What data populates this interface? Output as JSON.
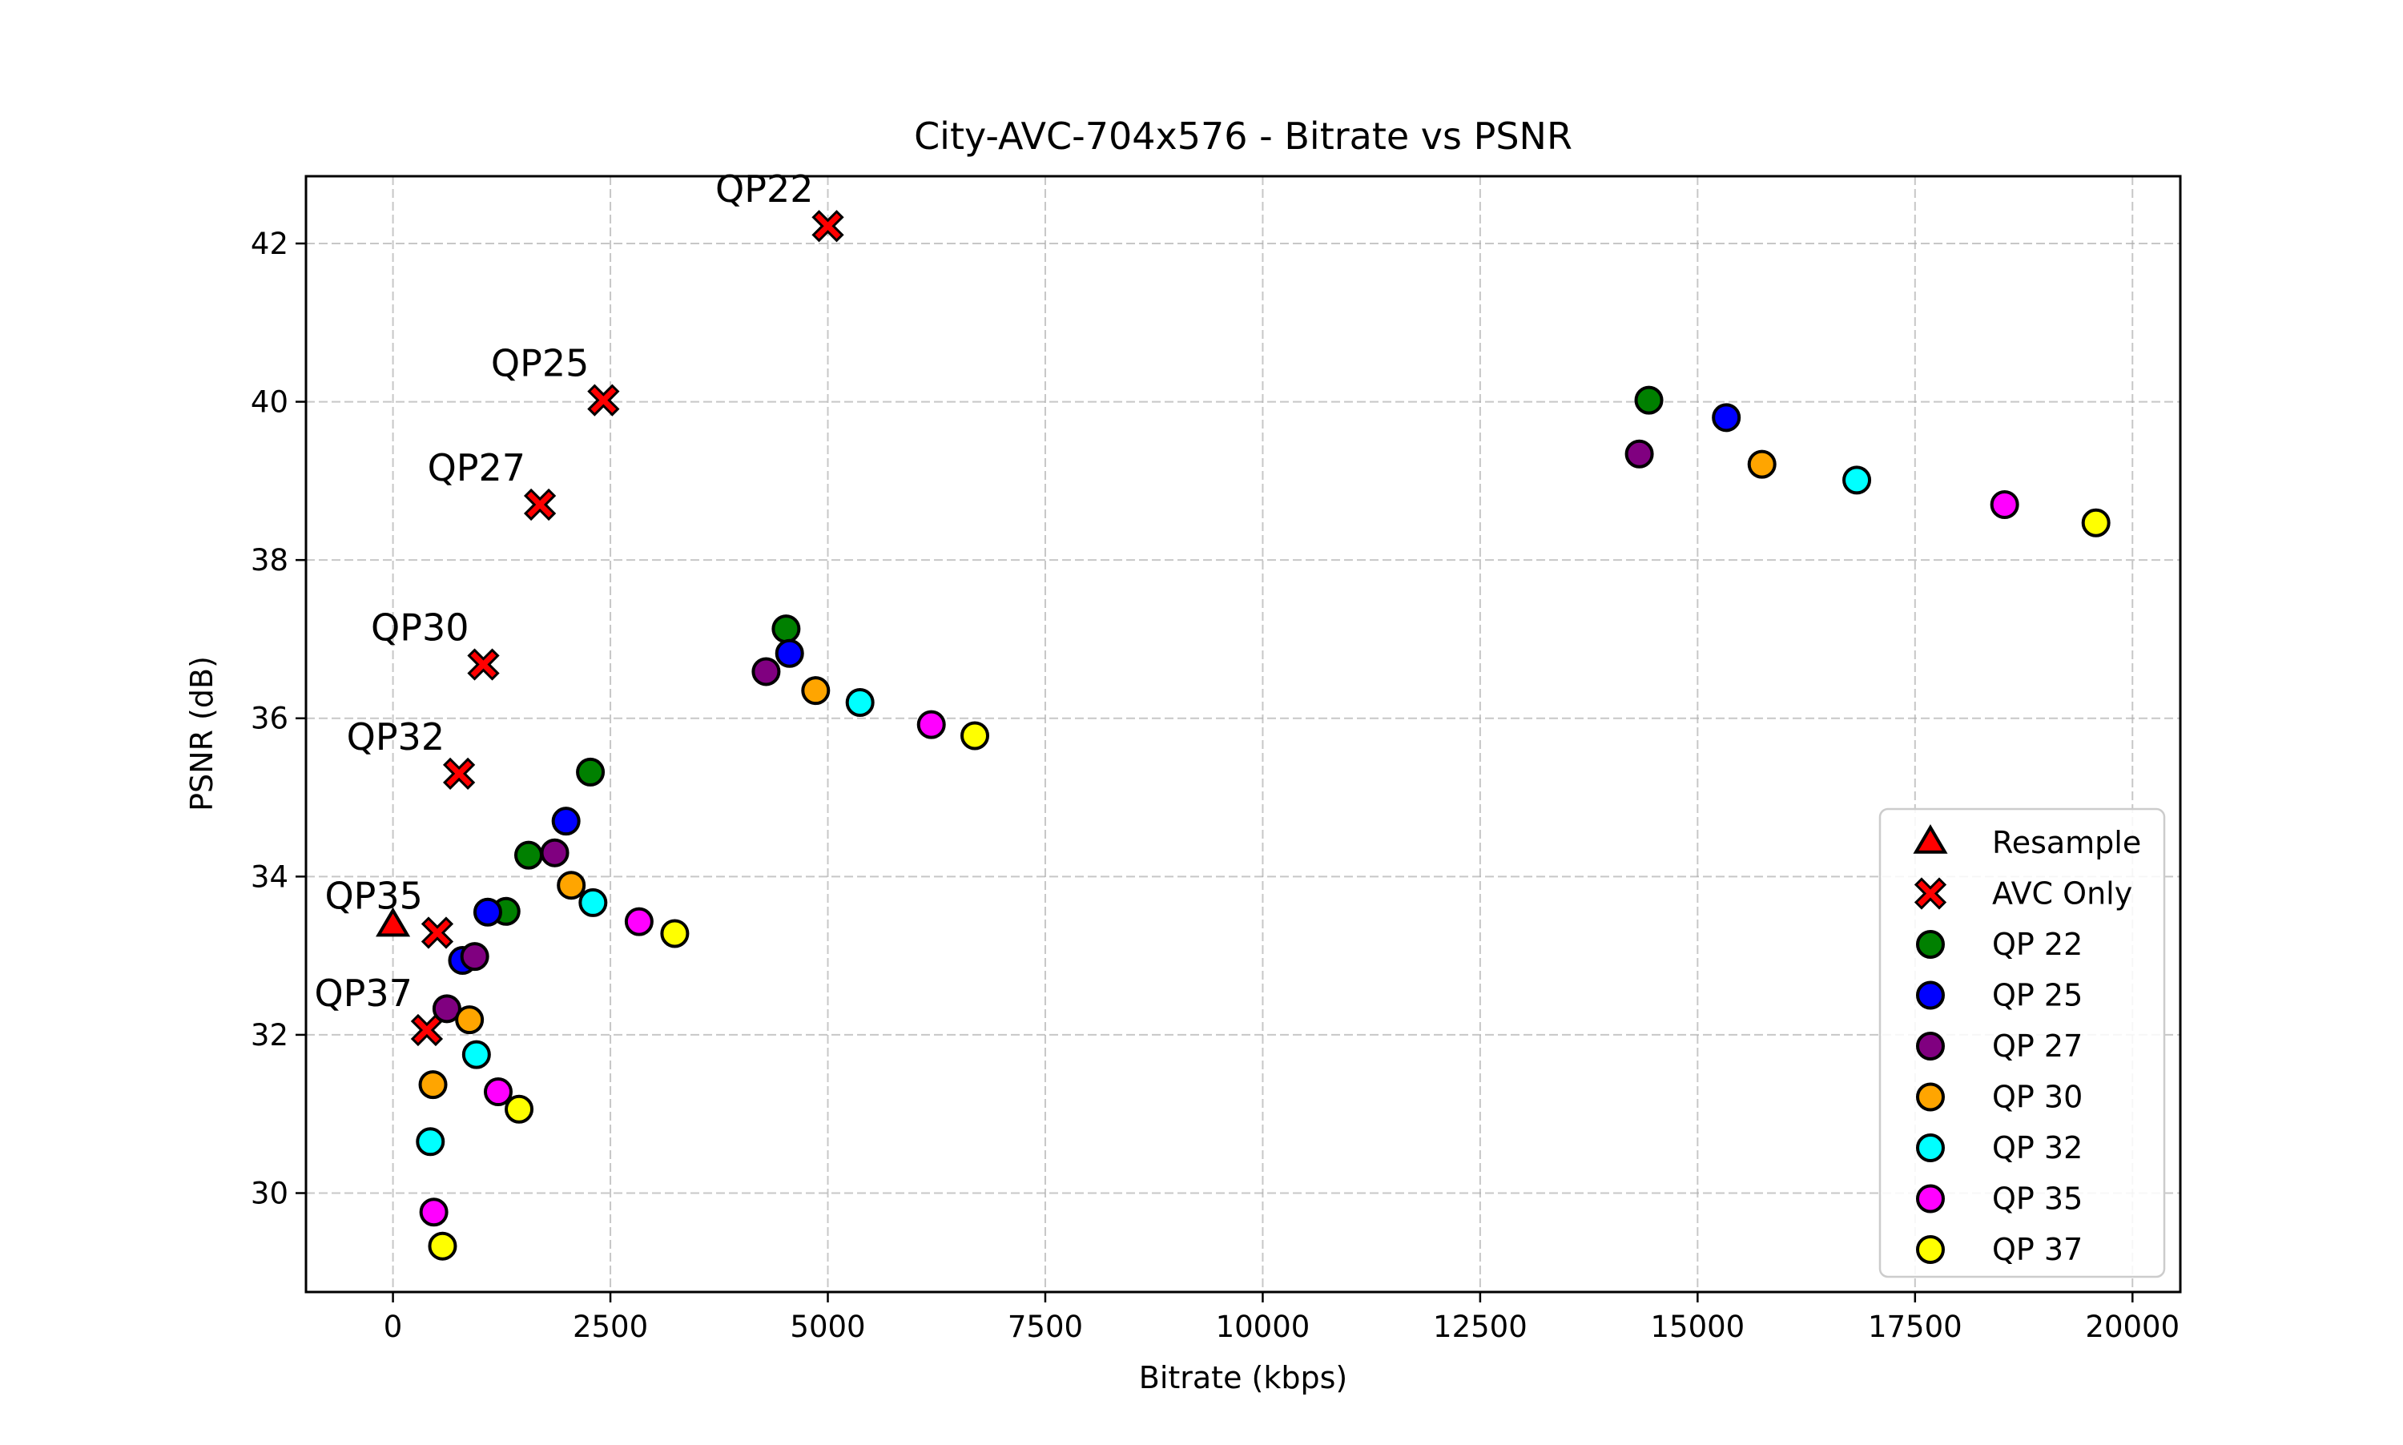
{
  "chart_data": {
    "type": "scatter",
    "title": "City-AVC-704x576 - Bitrate vs PSNR",
    "xlabel": "Bitrate (kbps)",
    "ylabel": "PSNR (dB)",
    "xlim": [
      -1000,
      20550
    ],
    "ylim": [
      28.75,
      42.85
    ],
    "xticks": [
      0,
      2500,
      5000,
      7500,
      10000,
      12500,
      15000,
      17500,
      20000
    ],
    "yticks": [
      30,
      32,
      34,
      36,
      38,
      40,
      42
    ],
    "grid": true,
    "legend_position": "bottom-right",
    "series": [
      {
        "name": "Resample",
        "marker": "triangle",
        "color": "#ff0000",
        "points": [
          [
            0,
            33.38
          ]
        ]
      },
      {
        "name": "AVC Only",
        "marker": "x",
        "color": "#ff0000",
        "points": [
          [
            5000,
            42.22
          ],
          [
            2420,
            40.02
          ],
          [
            1690,
            38.7
          ],
          [
            1040,
            36.68
          ],
          [
            760,
            35.3
          ],
          [
            510,
            33.29
          ],
          [
            390,
            32.06
          ]
        ]
      },
      {
        "name": "QP 22",
        "marker": "circle",
        "color": "#008000",
        "points": [
          [
            14440,
            40.02
          ],
          [
            4520,
            37.13
          ],
          [
            2270,
            35.32
          ],
          [
            1560,
            34.27
          ],
          [
            1300,
            33.56
          ]
        ]
      },
      {
        "name": "QP 25",
        "marker": "circle",
        "color": "#0000ff",
        "points": [
          [
            15330,
            39.8
          ],
          [
            4560,
            36.82
          ],
          [
            1990,
            34.7
          ],
          [
            1090,
            33.55
          ],
          [
            800,
            32.94
          ]
        ]
      },
      {
        "name": "QP 27",
        "marker": "circle",
        "color": "#800080",
        "points": [
          [
            14330,
            39.34
          ],
          [
            4290,
            36.59
          ],
          [
            1860,
            34.3
          ],
          [
            940,
            32.99
          ],
          [
            620,
            32.33
          ]
        ]
      },
      {
        "name": "QP 30",
        "marker": "circle",
        "color": "#ffa500",
        "points": [
          [
            15740,
            39.21
          ],
          [
            4860,
            36.35
          ],
          [
            2050,
            33.89
          ],
          [
            880,
            32.19
          ],
          [
            460,
            31.37
          ]
        ]
      },
      {
        "name": "QP 32",
        "marker": "circle",
        "color": "#00ffff",
        "points": [
          [
            16830,
            39.01
          ],
          [
            5370,
            36.2
          ],
          [
            2300,
            33.67
          ],
          [
            960,
            31.75
          ],
          [
            430,
            30.65
          ]
        ]
      },
      {
        "name": "QP 35",
        "marker": "circle",
        "color": "#ff00ff",
        "points": [
          [
            18530,
            38.7
          ],
          [
            6190,
            35.92
          ],
          [
            2830,
            33.43
          ],
          [
            1210,
            31.28
          ],
          [
            470,
            29.76
          ]
        ]
      },
      {
        "name": "QP 37",
        "marker": "circle",
        "color": "#ffff00",
        "points": [
          [
            19580,
            38.47
          ],
          [
            6690,
            35.78
          ],
          [
            3240,
            33.28
          ],
          [
            1450,
            31.06
          ],
          [
            570,
            29.33
          ]
        ]
      }
    ],
    "annotations": [
      {
        "text": "QP22",
        "x": 5000,
        "y": 42.22
      },
      {
        "text": "QP25",
        "x": 2420,
        "y": 40.02
      },
      {
        "text": "QP27",
        "x": 1690,
        "y": 38.7
      },
      {
        "text": "QP30",
        "x": 1040,
        "y": 36.68
      },
      {
        "text": "QP32",
        "x": 760,
        "y": 35.3
      },
      {
        "text": "QP35",
        "x": 510,
        "y": 33.29
      },
      {
        "text": "QP37",
        "x": 390,
        "y": 32.06
      }
    ]
  }
}
